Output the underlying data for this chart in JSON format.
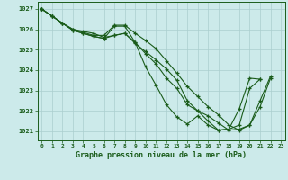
{
  "title": "Graphe pression niveau de la mer (hPa)",
  "bg_color": "#cceaea",
  "line_color": "#1a5c1a",
  "grid_color": "#aacece",
  "xlim_min": -0.4,
  "xlim_max": 23.4,
  "ylim_min": 1020.55,
  "ylim_max": 1027.35,
  "yticks": [
    1021,
    1022,
    1023,
    1024,
    1025,
    1026,
    1027
  ],
  "xticks": [
    0,
    1,
    2,
    3,
    4,
    5,
    6,
    7,
    8,
    9,
    10,
    11,
    12,
    13,
    14,
    15,
    16,
    17,
    18,
    19,
    20,
    21,
    22,
    23
  ],
  "series": [
    {
      "x": [
        0,
        1,
        2,
        3,
        4,
        5,
        6,
        7,
        8,
        9,
        10,
        11,
        12,
        13,
        14,
        15,
        16,
        17,
        18,
        19,
        20,
        21
      ],
      "y": [
        1027.0,
        1026.65,
        1026.3,
        1025.95,
        1025.8,
        1025.65,
        1025.55,
        1026.15,
        1026.15,
        1025.35,
        1024.15,
        1023.25,
        1022.3,
        1021.7,
        1021.35,
        1021.75,
        1021.3,
        1021.05,
        1021.1,
        1021.3,
        1023.1,
        1023.55
      ]
    },
    {
      "x": [
        0,
        1,
        2,
        3,
        4,
        5,
        6,
        7,
        8,
        9,
        10,
        11,
        12,
        13,
        14,
        15,
        16,
        17,
        18,
        19,
        20,
        21
      ],
      "y": [
        1027.0,
        1026.65,
        1026.3,
        1025.95,
        1025.8,
        1025.65,
        1025.55,
        1025.7,
        1025.8,
        1025.35,
        1024.8,
        1024.3,
        1023.6,
        1023.1,
        1022.3,
        1022.0,
        1021.5,
        1021.05,
        1021.1,
        1022.1,
        1023.6,
        1023.55
      ]
    },
    {
      "x": [
        0,
        1,
        2,
        3,
        4,
        5,
        6,
        7,
        8,
        9,
        10,
        11,
        12,
        13,
        14,
        15,
        16,
        17,
        18,
        19,
        20,
        21,
        22
      ],
      "y": [
        1027.0,
        1026.65,
        1026.3,
        1026.0,
        1025.85,
        1025.7,
        1025.7,
        1026.2,
        1026.2,
        1025.8,
        1025.45,
        1025.05,
        1024.45,
        1023.85,
        1023.2,
        1022.7,
        1022.2,
        1021.8,
        1021.3,
        1021.05,
        1021.3,
        1022.2,
        1023.6
      ]
    },
    {
      "x": [
        0,
        1,
        2,
        3,
        4,
        5,
        6,
        7,
        8,
        9,
        10,
        11,
        12,
        13,
        14,
        15,
        16,
        17,
        18,
        19,
        20,
        21,
        22
      ],
      "y": [
        1027.0,
        1026.65,
        1026.3,
        1026.0,
        1025.9,
        1025.8,
        1025.6,
        1025.7,
        1025.8,
        1025.3,
        1024.9,
        1024.5,
        1024.05,
        1023.5,
        1022.5,
        1022.0,
        1021.75,
        1021.4,
        1021.05,
        1021.1,
        1021.3,
        1022.5,
        1023.7
      ]
    }
  ]
}
